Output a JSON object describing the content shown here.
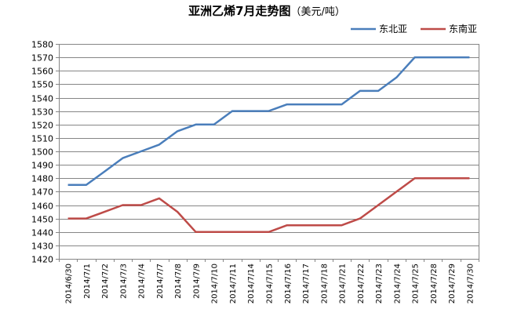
{
  "chart_data": {
    "type": "line",
    "title": "亚洲乙烯7月走势图",
    "title_unit": "（美元/吨）",
    "xlabel": "",
    "ylabel": "",
    "ylim": [
      1420,
      1580
    ],
    "ytick_step": 10,
    "grid": true,
    "legend_position": "top-right",
    "categories": [
      "2014/6/30",
      "2014/7/1",
      "2014/7/2",
      "2014/7/3",
      "2014/7/4",
      "2014/7/7",
      "2014/7/8",
      "2014/7/9",
      "2014/7/10",
      "2014/7/11",
      "2014/7/14",
      "2014/7/15",
      "2014/7/16",
      "2014/7/17",
      "2014/7/18",
      "2014/7/21",
      "2014/7/22",
      "2014/7/23",
      "2014/7/24",
      "2014/7/25",
      "2014/7/28",
      "2014/7/29",
      "2014/7/30"
    ],
    "series": [
      {
        "name": "东北亚",
        "color": "#4a7ebb",
        "values": [
          1475,
          1475,
          1485,
          1495,
          1500,
          1505,
          1515,
          1520,
          1520,
          1530,
          1530,
          1530,
          1535,
          1535,
          1535,
          1535,
          1545,
          1545,
          1555,
          1570,
          1570,
          1570,
          1570
        ]
      },
      {
        "name": "东南亚",
        "color": "#be4b48",
        "values": [
          1450,
          1450,
          1455,
          1460,
          1460,
          1465,
          1455,
          1440,
          1440,
          1440,
          1440,
          1440,
          1445,
          1445,
          1445,
          1445,
          1450,
          1460,
          1470,
          1480,
          1480,
          1480,
          1480
        ]
      }
    ]
  }
}
